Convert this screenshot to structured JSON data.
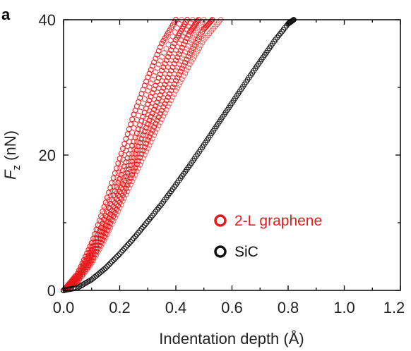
{
  "chart_data": {
    "type": "scatter",
    "panel_label": "a",
    "xlabel": "Indentation depth (Å)",
    "ylabel_main": "F",
    "ylabel_sub": "z",
    "ylabel_unit": " (nN)",
    "xlim": [
      0.0,
      1.2
    ],
    "ylim": [
      0,
      40
    ],
    "xticks": [
      "0.0",
      "0.2",
      "0.4",
      "0.6",
      "0.8",
      "1.0",
      "1.2"
    ],
    "yticks": [
      "0",
      "20",
      "40"
    ],
    "grid": false,
    "legend_placement": "lower-right",
    "series": [
      {
        "name": "2-L graphene",
        "color": "#e8191b",
        "marker": "open-circle",
        "curves": [
          {
            "x": [
              0.0,
              0.05,
              0.1,
              0.15,
              0.2,
              0.25,
              0.3,
              0.35,
              0.4
            ],
            "y": [
              0,
              2.5,
              7,
              13,
              19.5,
              26,
              31.5,
              36.5,
              40
            ]
          },
          {
            "x": [
              0.0,
              0.05,
              0.1,
              0.15,
              0.2,
              0.25,
              0.3,
              0.35,
              0.42
            ],
            "y": [
              0,
              2.3,
              6.5,
              12,
              18,
              24,
              29.5,
              34.5,
              40
            ]
          },
          {
            "x": [
              0.0,
              0.05,
              0.1,
              0.15,
              0.2,
              0.25,
              0.3,
              0.35,
              0.4,
              0.44
            ],
            "y": [
              0,
              2.1,
              6,
              11,
              16.5,
              22,
              27.5,
              32.5,
              37,
              40
            ]
          },
          {
            "x": [
              0.0,
              0.05,
              0.1,
              0.15,
              0.2,
              0.25,
              0.3,
              0.35,
              0.4,
              0.46
            ],
            "y": [
              0,
              2.0,
              5.6,
              10.3,
              15.5,
              20.8,
              26,
              31,
              35.5,
              40
            ]
          },
          {
            "x": [
              0.0,
              0.05,
              0.1,
              0.15,
              0.2,
              0.25,
              0.3,
              0.35,
              0.4,
              0.45,
              0.48
            ],
            "y": [
              0,
              1.8,
              5.2,
              9.6,
              14.6,
              19.6,
              24.6,
              29.4,
              34,
              38.2,
              40
            ]
          },
          {
            "x": [
              0.0,
              0.05,
              0.1,
              0.15,
              0.2,
              0.25,
              0.3,
              0.35,
              0.4,
              0.45,
              0.5
            ],
            "y": [
              0,
              1.6,
              4.8,
              9,
              13.8,
              18.6,
              23.4,
              28,
              32.5,
              36.6,
              40
            ]
          },
          {
            "x": [
              0.0,
              0.05,
              0.1,
              0.15,
              0.2,
              0.25,
              0.3,
              0.35,
              0.4,
              0.45,
              0.5,
              0.53
            ],
            "y": [
              0,
              1.4,
              4.4,
              8.4,
              13,
              17.6,
              22.2,
              26.6,
              31,
              35,
              38.6,
              40
            ]
          },
          {
            "x": [
              0.0,
              0.05,
              0.1,
              0.15,
              0.2,
              0.25,
              0.3,
              0.35,
              0.4,
              0.45,
              0.5,
              0.56
            ],
            "y": [
              0,
              1.2,
              4.0,
              7.8,
              12.2,
              16.6,
              21,
              25.3,
              29.5,
              33.4,
              37,
              40
            ]
          }
        ]
      },
      {
        "name": "SiC",
        "color": "#111111",
        "marker": "open-circle",
        "curves": [
          {
            "x": [
              0.0,
              0.05,
              0.1,
              0.15,
              0.2,
              0.25,
              0.3,
              0.35,
              0.4,
              0.45,
              0.5,
              0.55,
              0.6,
              0.65,
              0.7,
              0.75,
              0.8,
              0.82
            ],
            "y": [
              0,
              0.4,
              1.6,
              3.3,
              5.4,
              7.7,
              10.2,
              12.8,
              15.6,
              18.5,
              21.5,
              24.6,
              27.7,
              30.8,
              33.8,
              36.8,
              39.4,
              40
            ]
          }
        ]
      }
    ]
  }
}
